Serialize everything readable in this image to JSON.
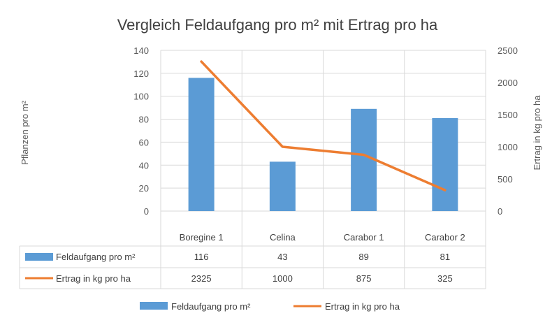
{
  "chart_data": {
    "type": "bar-line-combo",
    "title": "Vergleich Feldaufgang pro m² mit Ertrag pro ha",
    "categories": [
      "Boregine 1",
      "Celina",
      "Carabor 1",
      "Carabor 2"
    ],
    "y_left": {
      "label": "Pflanzen pro m²",
      "ticks": [
        0,
        20,
        40,
        60,
        80,
        100,
        120,
        140
      ],
      "ylim": [
        0,
        140
      ]
    },
    "y_right": {
      "label": "Ertrag in kg pro ha",
      "ticks": [
        0,
        500,
        1000,
        1500,
        2000,
        2500
      ],
      "ylim": [
        0,
        2500
      ]
    },
    "series": [
      {
        "name": "Feldaufgang pro m²",
        "type": "bar",
        "axis": "left",
        "color": "#5B9BD5",
        "values": [
          116,
          43,
          89,
          81
        ]
      },
      {
        "name": "Ertrag in kg pro ha",
        "type": "line",
        "axis": "right",
        "color": "#ED7D31",
        "values": [
          2325,
          1000,
          875,
          325
        ]
      }
    ],
    "grid": true,
    "data_table": true,
    "legend_position": "bottom"
  }
}
